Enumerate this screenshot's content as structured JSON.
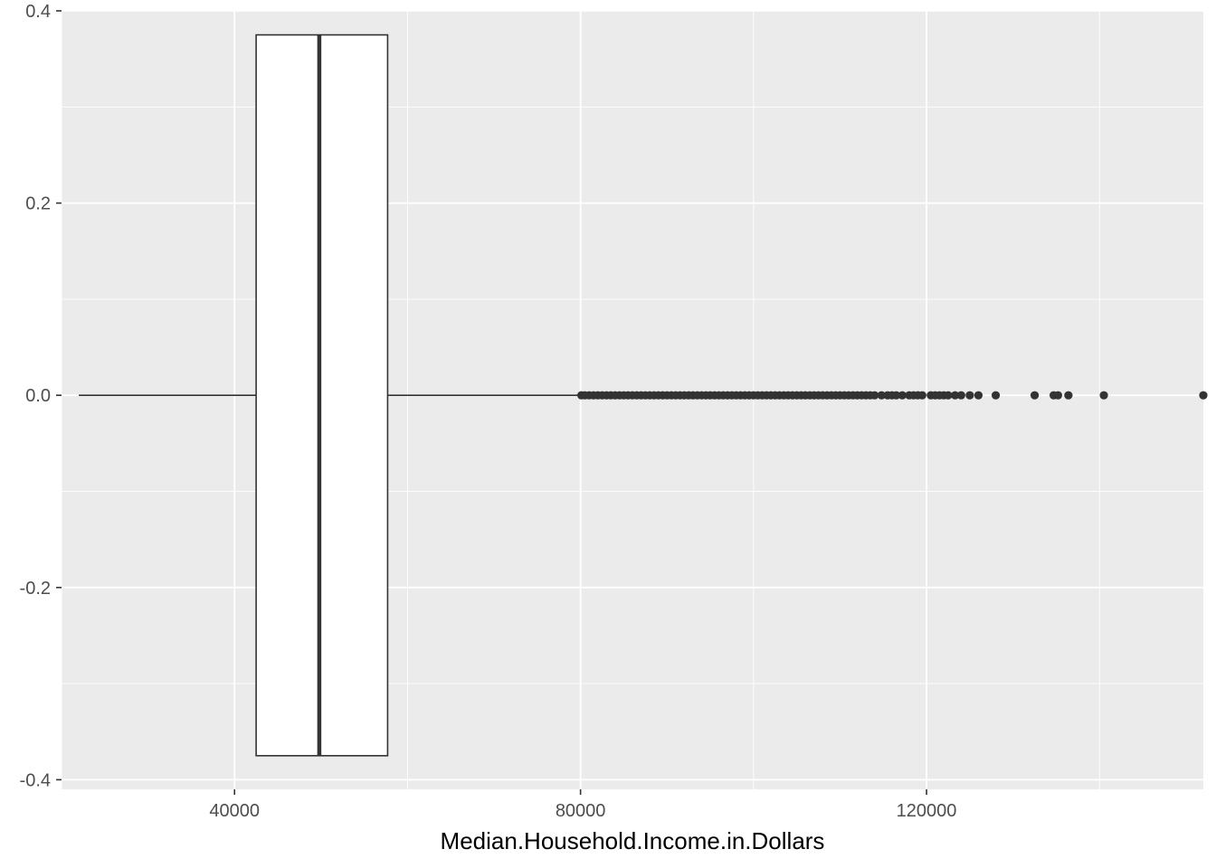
{
  "chart_data": {
    "type": "boxplot",
    "orientation": "horizontal",
    "title": "",
    "xlabel": "Median.Household.Income.in.Dollars",
    "ylabel": "",
    "xlim": [
      20000,
      152000
    ],
    "ylim": [
      -0.41,
      0.4
    ],
    "x_ticks": [
      40000,
      80000,
      120000
    ],
    "x_tick_labels": [
      "40000",
      "80000",
      "120000"
    ],
    "y_ticks": [
      -0.4,
      -0.2,
      0.0,
      0.2,
      0.4
    ],
    "y_tick_labels": [
      "-0.4",
      "-0.2",
      "0.0",
      "0.2",
      "0.4"
    ],
    "grid": true,
    "box": {
      "whisker_low": 22000,
      "q1": 42500,
      "median": 49800,
      "q3": 57700,
      "whisker_high": 80000,
      "y_center": 0.0,
      "half_height": 0.375
    },
    "outliers": [
      80100,
      80500,
      81000,
      81500,
      82000,
      82500,
      83000,
      83500,
      84000,
      84500,
      85000,
      85500,
      86000,
      86500,
      87000,
      87500,
      88000,
      88500,
      89000,
      89500,
      90000,
      90500,
      91000,
      91500,
      92000,
      92500,
      93000,
      93500,
      94000,
      94500,
      95000,
      95500,
      96000,
      96500,
      97000,
      97500,
      98000,
      98500,
      99000,
      99500,
      100000,
      100500,
      101000,
      101500,
      102000,
      102500,
      103000,
      103500,
      104000,
      104500,
      105000,
      105500,
      106000,
      106500,
      107000,
      107500,
      108000,
      108500,
      109000,
      109500,
      110000,
      110500,
      111000,
      111500,
      112000,
      112500,
      113000,
      113500,
      114000,
      114800,
      115500,
      116000,
      116500,
      117200,
      118000,
      118500,
      119000,
      119500,
      120500,
      121000,
      121500,
      122000,
      122500,
      123300,
      124000,
      125000,
      126000,
      128000,
      132500,
      134700,
      135200,
      136400,
      140500,
      152000
    ],
    "colors": {
      "panel_background": "#ebebeb",
      "grid_major": "#ffffff",
      "box_fill": "#ffffff",
      "box_line": "#333333",
      "points": "#333333"
    }
  }
}
